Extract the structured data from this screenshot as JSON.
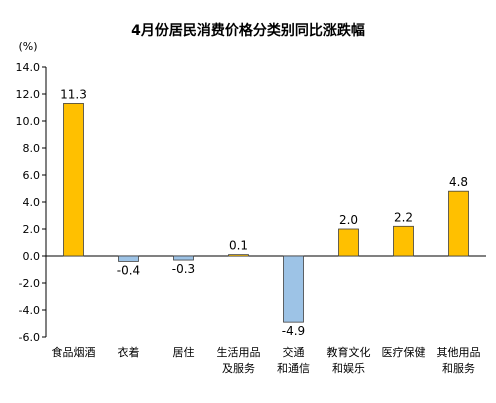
{
  "chart_data": {
    "type": "bar",
    "title": "4月份居民消费价格分类别同比涨跌幅",
    "ylabel": "(%)",
    "xlabel": "",
    "ylim": [
      -6.0,
      14.0
    ],
    "yticks": [
      "-6.0",
      "-4.0",
      "-2.0",
      "0.0",
      "2.0",
      "4.0",
      "6.0",
      "8.0",
      "10.0",
      "12.0",
      "14.0"
    ],
    "categories": [
      [
        "食品烟酒"
      ],
      [
        "衣着"
      ],
      [
        "居住"
      ],
      [
        "生活用品",
        "及服务"
      ],
      [
        "交通",
        "和通信"
      ],
      [
        "教育文化",
        "和娱乐"
      ],
      [
        "医疗保健"
      ],
      [
        "其他用品",
        "和服务"
      ]
    ],
    "values": [
      11.3,
      -0.4,
      -0.3,
      0.1,
      -4.9,
      2.0,
      2.2,
      4.8
    ],
    "labels": [
      "11.3",
      "-0.4",
      "-0.3",
      "0.1",
      "-4.9",
      "2.0",
      "2.2",
      "4.8"
    ],
    "colors": {
      "positive": "#FFC000",
      "negative": "#9DC3E6",
      "border": "#404040"
    },
    "grid": false,
    "legend": "none"
  }
}
